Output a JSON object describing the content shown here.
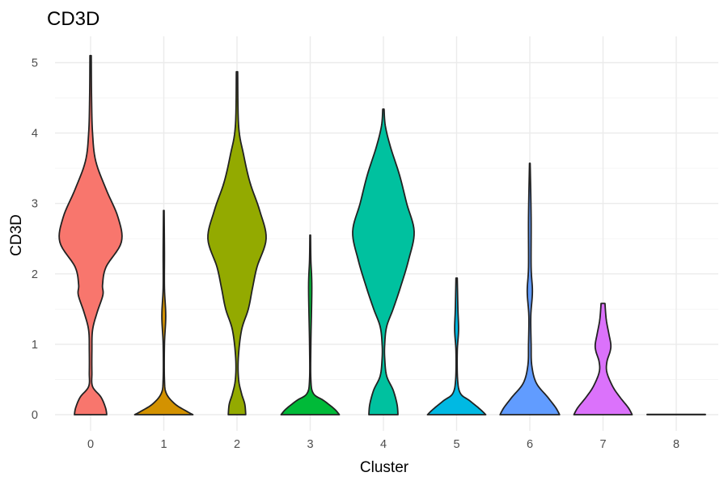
{
  "chart_data": {
    "type": "violin",
    "title": "CD3D",
    "xlabel": "Cluster",
    "ylabel": "CD3D",
    "ylim": [
      0,
      5.2
    ],
    "yticks": [
      0,
      1,
      2,
      3,
      4,
      5
    ],
    "categories": [
      "0",
      "1",
      "2",
      "3",
      "4",
      "5",
      "6",
      "7",
      "8"
    ],
    "colors": [
      "#F8766D",
      "#D39200",
      "#93AA00",
      "#00BA38",
      "#00C19F",
      "#00B9E3",
      "#619CFF",
      "#DB72FB",
      "#FF61C3"
    ],
    "series": [
      {
        "cluster": "0",
        "max": 5.1,
        "profile": [
          [
            0,
            0.5
          ],
          [
            0.1,
            0.46
          ],
          [
            0.25,
            0.32
          ],
          [
            0.4,
            0.06
          ],
          [
            0.6,
            0.04
          ],
          [
            0.9,
            0.04
          ],
          [
            1.2,
            0.06
          ],
          [
            1.45,
            0.2
          ],
          [
            1.7,
            0.38
          ],
          [
            1.85,
            0.37
          ],
          [
            2.1,
            0.48
          ],
          [
            2.45,
            0.95
          ],
          [
            2.8,
            0.85
          ],
          [
            3.2,
            0.48
          ],
          [
            3.6,
            0.16
          ],
          [
            4.0,
            0.06
          ],
          [
            4.5,
            0.03
          ],
          [
            5.1,
            0.02
          ]
        ]
      },
      {
        "cluster": "1",
        "max": 2.9,
        "profile": [
          [
            0,
            0.9
          ],
          [
            0.05,
            0.7
          ],
          [
            0.15,
            0.35
          ],
          [
            0.3,
            0.08
          ],
          [
            0.5,
            0.02
          ],
          [
            1.0,
            0.02
          ],
          [
            1.4,
            0.06
          ],
          [
            1.8,
            0.02
          ],
          [
            2.3,
            0.02
          ],
          [
            2.9,
            0.01
          ]
        ]
      },
      {
        "cluster": "2",
        "max": 4.87,
        "profile": [
          [
            0,
            0.27
          ],
          [
            0.15,
            0.24
          ],
          [
            0.3,
            0.14
          ],
          [
            0.5,
            0.05
          ],
          [
            0.8,
            0.04
          ],
          [
            1.2,
            0.14
          ],
          [
            1.5,
            0.35
          ],
          [
            1.8,
            0.48
          ],
          [
            2.1,
            0.62
          ],
          [
            2.5,
            0.9
          ],
          [
            2.9,
            0.7
          ],
          [
            3.3,
            0.4
          ],
          [
            3.7,
            0.2
          ],
          [
            4.1,
            0.05
          ],
          [
            4.87,
            0.02
          ]
        ]
      },
      {
        "cluster": "3",
        "max": 2.55,
        "profile": [
          [
            0,
            0.9
          ],
          [
            0.08,
            0.75
          ],
          [
            0.2,
            0.42
          ],
          [
            0.3,
            0.1
          ],
          [
            0.5,
            0.02
          ],
          [
            1.0,
            0.02
          ],
          [
            1.8,
            0.05
          ],
          [
            2.2,
            0.02
          ],
          [
            2.55,
            0.01
          ]
        ]
      },
      {
        "cluster": "4",
        "max": 4.34,
        "profile": [
          [
            0,
            0.45
          ],
          [
            0.15,
            0.42
          ],
          [
            0.35,
            0.3
          ],
          [
            0.55,
            0.1
          ],
          [
            0.8,
            0.04
          ],
          [
            1.0,
            0.04
          ],
          [
            1.25,
            0.1
          ],
          [
            1.5,
            0.3
          ],
          [
            1.8,
            0.52
          ],
          [
            2.2,
            0.78
          ],
          [
            2.6,
            0.95
          ],
          [
            3.0,
            0.72
          ],
          [
            3.4,
            0.5
          ],
          [
            3.8,
            0.22
          ],
          [
            4.1,
            0.06
          ],
          [
            4.34,
            0.02
          ]
        ]
      },
      {
        "cluster": "5",
        "max": 1.94,
        "profile": [
          [
            0,
            0.9
          ],
          [
            0.08,
            0.72
          ],
          [
            0.2,
            0.4
          ],
          [
            0.3,
            0.12
          ],
          [
            0.5,
            0.03
          ],
          [
            0.9,
            0.02
          ],
          [
            1.2,
            0.06
          ],
          [
            1.5,
            0.04
          ],
          [
            1.94,
            0.02
          ]
        ]
      },
      {
        "cluster": "6",
        "max": 3.57,
        "profile": [
          [
            0,
            0.92
          ],
          [
            0.1,
            0.8
          ],
          [
            0.25,
            0.55
          ],
          [
            0.45,
            0.2
          ],
          [
            0.7,
            0.06
          ],
          [
            1.0,
            0.04
          ],
          [
            1.4,
            0.03
          ],
          [
            1.75,
            0.08
          ],
          [
            2.1,
            0.04
          ],
          [
            2.8,
            0.04
          ],
          [
            3.57,
            0.01
          ]
        ]
      },
      {
        "cluster": "7",
        "max": 1.58,
        "profile": [
          [
            0,
            0.9
          ],
          [
            0.1,
            0.78
          ],
          [
            0.25,
            0.52
          ],
          [
            0.4,
            0.3
          ],
          [
            0.6,
            0.12
          ],
          [
            0.75,
            0.12
          ],
          [
            0.9,
            0.22
          ],
          [
            1.0,
            0.24
          ],
          [
            1.15,
            0.18
          ],
          [
            1.35,
            0.1
          ],
          [
            1.58,
            0.06
          ]
        ]
      },
      {
        "cluster": "8",
        "max": 0.0,
        "profile": [
          [
            0,
            0.9
          ],
          [
            0.004,
            0.9
          ]
        ]
      }
    ]
  }
}
